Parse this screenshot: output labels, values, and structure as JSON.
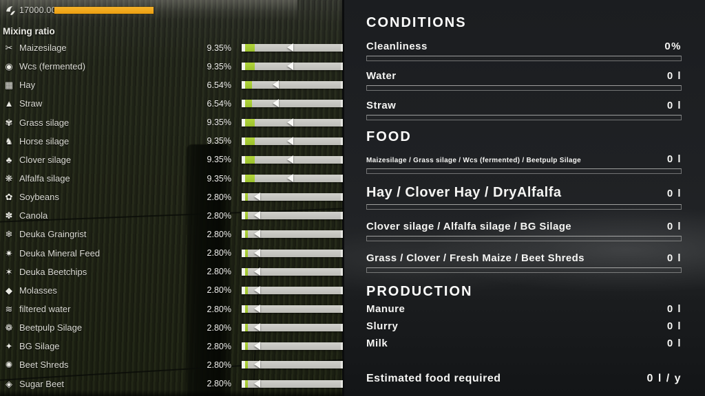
{
  "colors": {
    "accent_orange": "#eda41c",
    "slider_green": "#a5c832",
    "slider_track": "#c4c4c0",
    "panel_background": "#1e2023"
  },
  "left_panel": {
    "fill_level_value": "17000.00",
    "header": "Mixing ratio",
    "slider_max_percent": 20,
    "ingredients": [
      {
        "label": "Maizesilage",
        "percent_label": "9.35%",
        "percent": 9.35,
        "icon": "maizesilage-icon",
        "glyph": "✂"
      },
      {
        "label": "Wcs (fermented)",
        "percent_label": "9.35%",
        "percent": 9.35,
        "icon": "wcs-fermented-icon",
        "glyph": "◉"
      },
      {
        "label": "Hay",
        "percent_label": "6.54%",
        "percent": 6.54,
        "icon": "hay-icon",
        "glyph": "▦"
      },
      {
        "label": "Straw",
        "percent_label": "6.54%",
        "percent": 6.54,
        "icon": "straw-icon",
        "glyph": "▲"
      },
      {
        "label": "Grass silage",
        "percent_label": "9.35%",
        "percent": 9.35,
        "icon": "grass-silage-icon",
        "glyph": "✾"
      },
      {
        "label": "Horse silage",
        "percent_label": "9.35%",
        "percent": 9.35,
        "icon": "horse-silage-icon",
        "glyph": "♞"
      },
      {
        "label": "Clover silage",
        "percent_label": "9.35%",
        "percent": 9.35,
        "icon": "clover-silage-icon",
        "glyph": "♣"
      },
      {
        "label": "Alfalfa silage",
        "percent_label": "9.35%",
        "percent": 9.35,
        "icon": "alfalfa-silage-icon",
        "glyph": "❋"
      },
      {
        "label": "Soybeans",
        "percent_label": "2.80%",
        "percent": 2.8,
        "icon": "soybeans-icon",
        "glyph": "✿"
      },
      {
        "label": "Canola",
        "percent_label": "2.80%",
        "percent": 2.8,
        "icon": "canola-icon",
        "glyph": "✽"
      },
      {
        "label": "Deuka Graingrist",
        "percent_label": "2.80%",
        "percent": 2.8,
        "icon": "deuka-graingrist-icon",
        "glyph": "❄"
      },
      {
        "label": "Deuka Mineral Feed",
        "percent_label": "2.80%",
        "percent": 2.8,
        "icon": "deuka-mineral-feed-icon",
        "glyph": "✷"
      },
      {
        "label": "Deuka Beetchips",
        "percent_label": "2.80%",
        "percent": 2.8,
        "icon": "deuka-beetchips-icon",
        "glyph": "✶"
      },
      {
        "label": "Molasses",
        "percent_label": "2.80%",
        "percent": 2.8,
        "icon": "molasses-icon",
        "glyph": "◆"
      },
      {
        "label": "filtered water",
        "percent_label": "2.80%",
        "percent": 2.8,
        "icon": "filtered-water-icon",
        "glyph": "≋"
      },
      {
        "label": "Beetpulp Silage",
        "percent_label": "2.80%",
        "percent": 2.8,
        "icon": "beetpulp-silage-icon",
        "glyph": "❁"
      },
      {
        "label": "BG Silage",
        "percent_label": "2.80%",
        "percent": 2.8,
        "icon": "bg-silage-icon",
        "glyph": "✦"
      },
      {
        "label": "Beet Shreds",
        "percent_label": "2.80%",
        "percent": 2.8,
        "icon": "beet-shreds-icon",
        "glyph": "✺"
      },
      {
        "label": "Sugar Beet",
        "percent_label": "2.80%",
        "percent": 2.8,
        "icon": "sugar-beet-icon",
        "glyph": "◈"
      }
    ]
  },
  "right_panel": {
    "conditions": {
      "title": "CONDITIONS",
      "rows": [
        {
          "label": "Cleanliness",
          "value": "0%"
        },
        {
          "label": "Water",
          "value": "0 l"
        },
        {
          "label": "Straw",
          "value": "0 l"
        }
      ]
    },
    "food": {
      "title": "FOOD",
      "rows": [
        {
          "label": "Maizesilage / Grass silage / Wcs (fermented) / Beetpulp Silage",
          "value": "0 l",
          "size": "small"
        },
        {
          "label": "Hay / Clover Hay / DryAlfalfa",
          "value": "0 l",
          "size": "large"
        },
        {
          "label": "Clover silage / Alfalfa silage / BG Silage",
          "value": "0 l",
          "size": "medium"
        },
        {
          "label": "Grass / Clover / Fresh Maize / Beet Shreds",
          "value": "0 l",
          "size": "medium"
        }
      ]
    },
    "production": {
      "title": "PRODUCTION",
      "rows": [
        {
          "label": "Manure",
          "value": "0 l"
        },
        {
          "label": "Slurry",
          "value": "0 l"
        },
        {
          "label": "Milk",
          "value": "0 l"
        }
      ]
    },
    "estimated_row": {
      "label": "Estimated food required",
      "value": "0 l / y"
    }
  }
}
